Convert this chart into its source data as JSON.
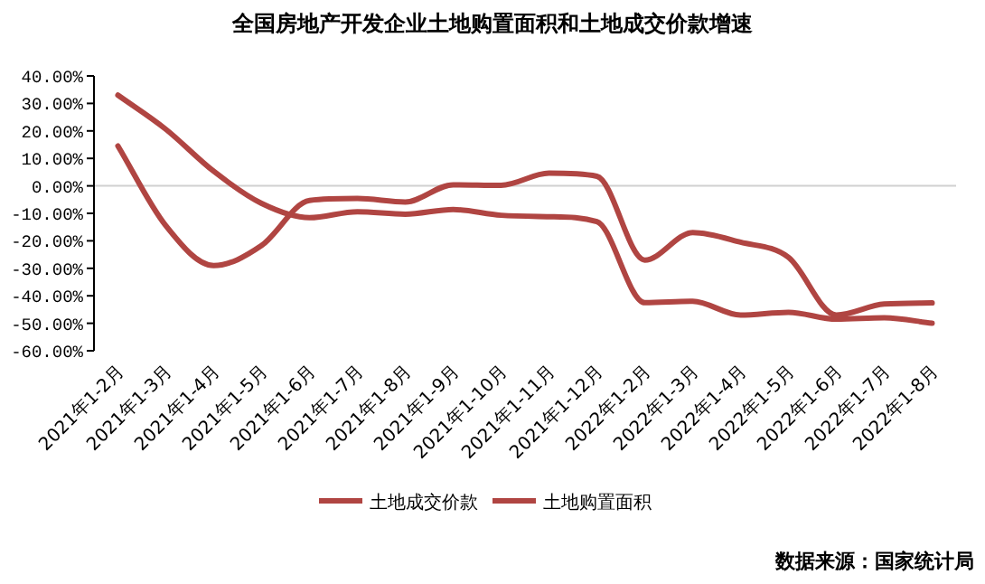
{
  "chart_data": {
    "type": "line",
    "title": "全国房地产开发企业土地购置面积和土地成交价款增速",
    "categories": [
      "2021年1-2月",
      "2021年1-3月",
      "2021年1-4月",
      "2021年1-5月",
      "2021年1-6月",
      "2021年1-7月",
      "2021年1-8月",
      "2021年1-9月",
      "2021年1-10月",
      "2021年1-11月",
      "2021年1-12月",
      "2022年1-2月",
      "2022年1-3月",
      "2022年1-4月",
      "2022年1-5月",
      "2022年1-6月",
      "2022年1-7月",
      "2022年1-8月"
    ],
    "series": [
      {
        "name": "土地成交价款",
        "color": "#b04542",
        "values": [
          14.5,
          -14.5,
          -29,
          -21.7,
          -5.3,
          -4.6,
          -5.9,
          0.4,
          0.2,
          4.6,
          3.5,
          -27,
          -17,
          -20.5,
          -26,
          -47,
          -43,
          -42.6
        ]
      },
      {
        "name": "土地购置面积",
        "color": "#b04542",
        "values": [
          33,
          20.6,
          5.3,
          -6.4,
          -11.6,
          -9.4,
          -10.3,
          -8.6,
          -10.7,
          -11.2,
          -13,
          -42.5,
          -42,
          -47,
          -46,
          -48.5,
          -48,
          -50
        ]
      }
    ],
    "ylim": [
      -60,
      40
    ],
    "yticks": [
      {
        "value": 40,
        "label": "40.00%"
      },
      {
        "value": 30,
        "label": "30.00%"
      },
      {
        "value": 20,
        "label": "20.00%"
      },
      {
        "value": 10,
        "label": "10.00%"
      },
      {
        "value": 0,
        "label": "0.00%"
      },
      {
        "value": -10,
        "label": "-10.00%"
      },
      {
        "value": -20,
        "label": "-20.00%"
      },
      {
        "value": -30,
        "label": "-30.00%"
      },
      {
        "value": -40,
        "label": "-40.00%"
      },
      {
        "value": -50,
        "label": "-50.00%"
      },
      {
        "value": -60,
        "label": "-60.00%"
      }
    ],
    "ref_lines": [
      {
        "axis": "y",
        "value": 0,
        "color": "#d0d0d0"
      }
    ],
    "grid": false,
    "legend": "bottom",
    "marker": "none",
    "line_style": "solid",
    "annotations": [
      "数据来源：国家统计局"
    ]
  }
}
